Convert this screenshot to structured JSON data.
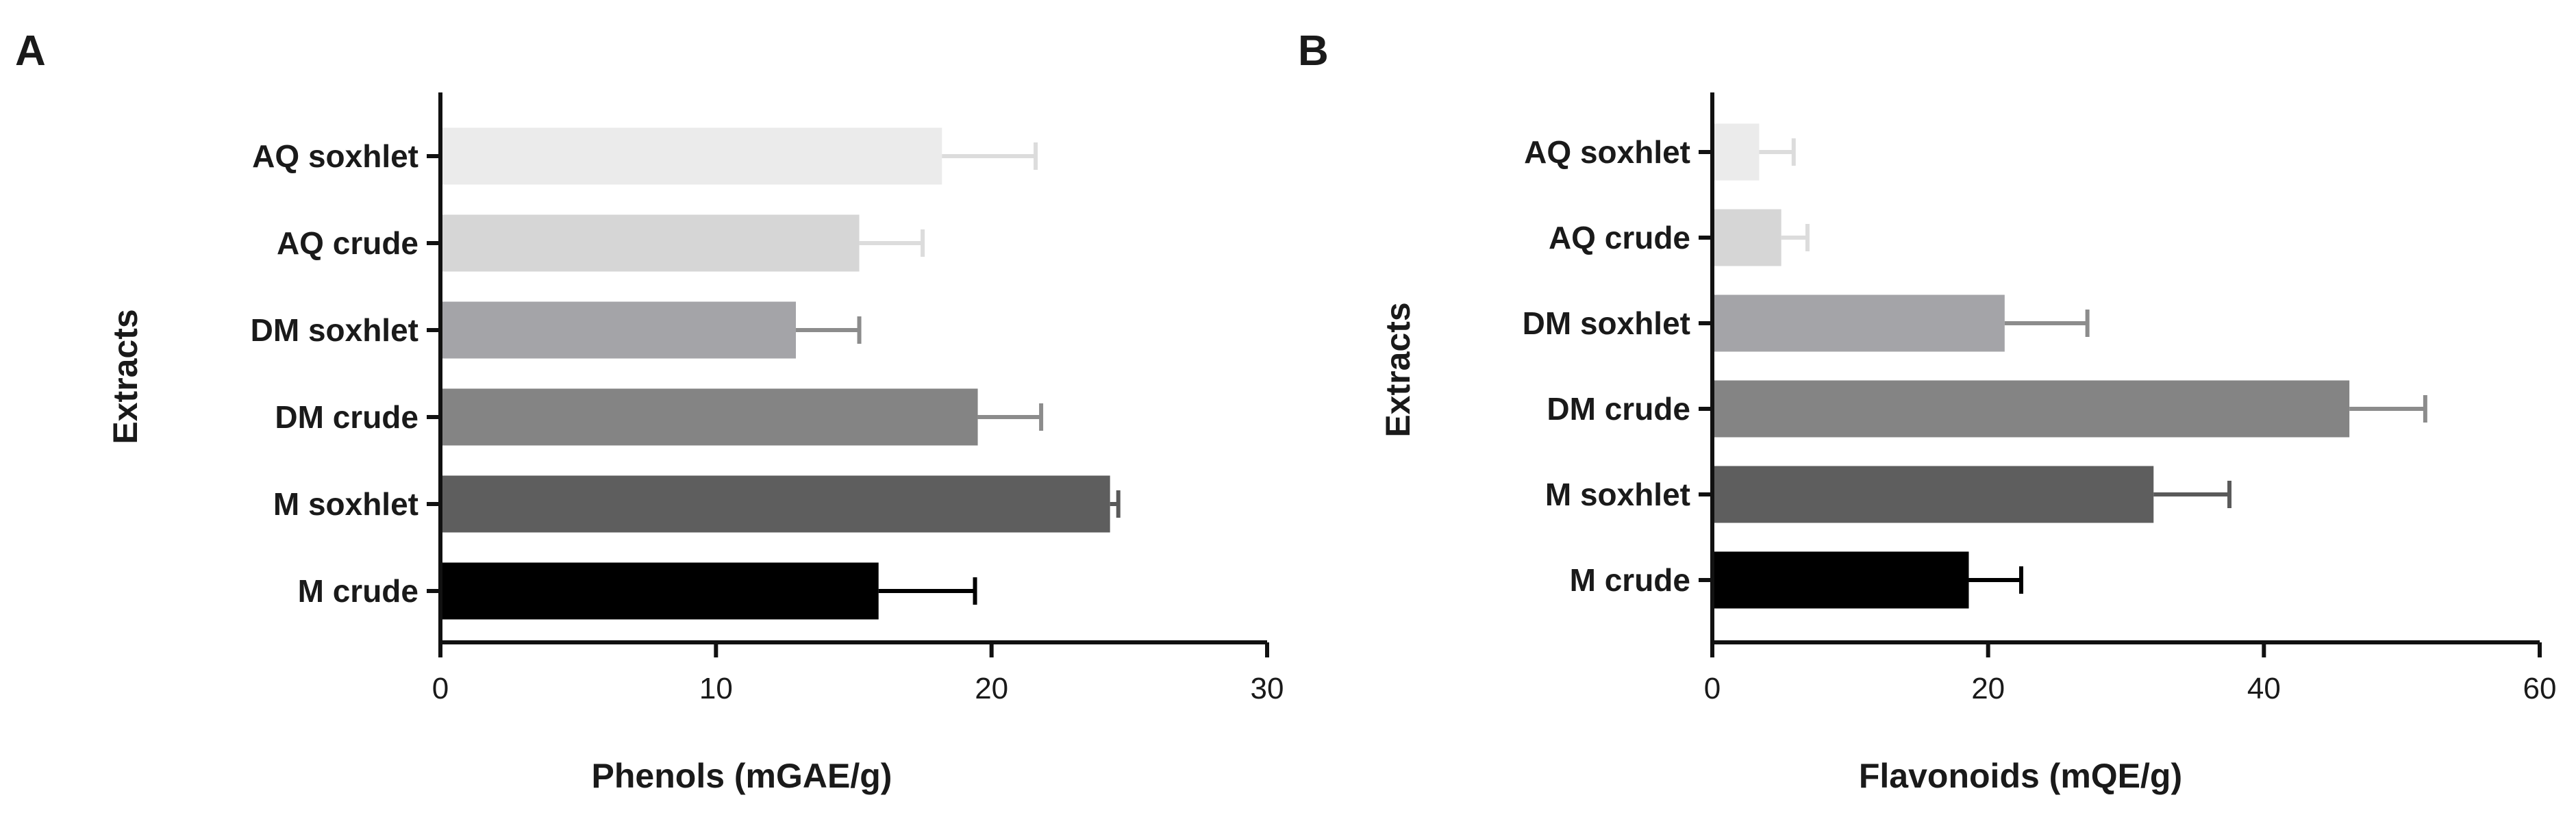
{
  "chart_data": [
    {
      "type": "bar",
      "orientation": "horizontal",
      "panel": "A",
      "categories": [
        "AQ soxhlet",
        "AQ crude",
        "DM soxhlet",
        "DM crude",
        "M soxhlet",
        "M crude"
      ],
      "values": [
        18.2,
        15.2,
        12.9,
        19.5,
        24.3,
        15.9
      ],
      "errors": [
        3.4,
        2.3,
        2.3,
        2.3,
        0.3,
        3.5
      ],
      "colors": [
        "#ebebeb",
        "#d6d6d6",
        "#a4a4a8",
        "#848484",
        "#5e5e5e",
        "#000000"
      ],
      "xlabel": "Phenols (mGAE/g)",
      "ylabel": "Extracts",
      "xlim": [
        0,
        30
      ],
      "xticks": [
        0,
        10,
        20,
        30
      ]
    },
    {
      "type": "bar",
      "orientation": "horizontal",
      "panel": "B",
      "categories": [
        "AQ soxhlet",
        "AQ crude",
        "DM soxhlet",
        "DM crude",
        "M soxhlet",
        "M crude"
      ],
      "values": [
        3.4,
        5.0,
        21.2,
        46.2,
        32.0,
        18.6
      ],
      "errors": [
        2.5,
        1.9,
        6.0,
        5.5,
        5.5,
        3.8
      ],
      "colors": [
        "#ebebeb",
        "#d6d6d6",
        "#a4a4a8",
        "#848484",
        "#5e5e5e",
        "#000000"
      ],
      "xlabel": "Flavonoids (mQE/g)",
      "ylabel": "Extracts",
      "xlim": [
        0,
        60
      ],
      "xticks": [
        0,
        20,
        40,
        60
      ]
    }
  ]
}
